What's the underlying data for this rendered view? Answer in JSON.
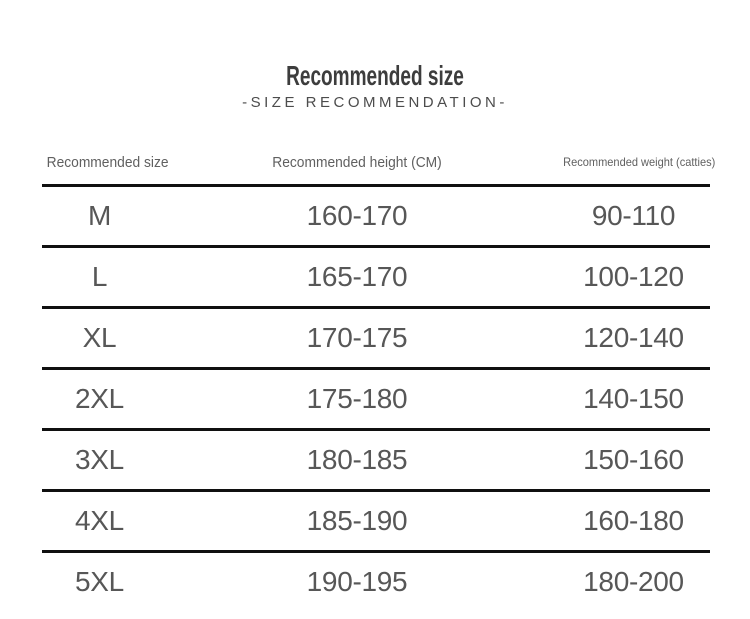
{
  "chart_data": {
    "type": "table",
    "title": "Recommended size",
    "subtitle": "-SIZE RECOMMENDATION-",
    "columns": [
      "Recommended size",
      "Recommended height (CM)",
      "Recommended weight (catties)"
    ],
    "rows": [
      [
        "M",
        "160-170",
        "90-110"
      ],
      [
        "L",
        "165-170",
        "100-120"
      ],
      [
        "XL",
        "170-175",
        "120-140"
      ],
      [
        "2XL",
        "175-180",
        "140-150"
      ],
      [
        "3XL",
        "180-185",
        "150-160"
      ],
      [
        "4XL",
        "185-190",
        "160-180"
      ],
      [
        "5XL",
        "190-195",
        "180-200"
      ]
    ],
    "layout": {
      "legend": "none",
      "grid": "horizontal-rules-only"
    }
  },
  "colors": {
    "background": "#ffffff",
    "title_text": "#3d3d3d",
    "subtitle_text": "#4c4c4c",
    "header_text": "#606060",
    "cell_text": "#575757",
    "rule": "#101010"
  }
}
